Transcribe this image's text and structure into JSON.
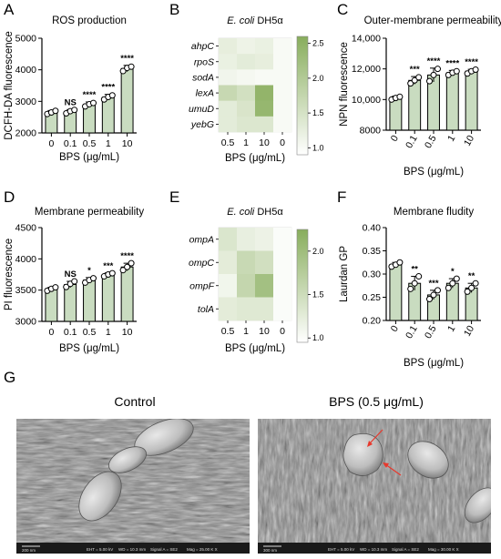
{
  "chart_data": [
    {
      "panel": "A",
      "type": "bar",
      "title": "ROS production",
      "xlabel": "BPS (μg/mL)",
      "ylabel": "DCFH-DA fluorescence",
      "ylim": [
        2000,
        5000
      ],
      "yticks": [
        2000,
        3000,
        4000,
        5000
      ],
      "categories": [
        "0",
        "0.1",
        "0.5",
        "1",
        "10"
      ],
      "values": [
        2650,
        2680,
        2900,
        3130,
        4040
      ],
      "errors": [
        60,
        60,
        80,
        90,
        100
      ],
      "points": [
        [
          2600,
          2650,
          2700
        ],
        [
          2620,
          2690,
          2730
        ],
        [
          2840,
          2910,
          2950
        ],
        [
          3060,
          3140,
          3190
        ],
        [
          3960,
          4060,
          4100
        ]
      ],
      "sig": [
        "",
        "NS",
        "****",
        "****",
        "****"
      ]
    },
    {
      "panel": "B",
      "type": "heatmap",
      "title": "E. coli DH5α",
      "xlabel": "BPS (μg/mL)",
      "columns": [
        "0.5",
        "1",
        "10",
        "0"
      ],
      "rows": [
        "ahpC",
        "rpoS",
        "sodA",
        "lexA",
        "umuD",
        "yebG"
      ],
      "values": [
        [
          1.25,
          1.15,
          1.2,
          1.0
        ],
        [
          1.2,
          1.3,
          1.25,
          1.0
        ],
        [
          1.1,
          1.05,
          1.0,
          1.0
        ],
        [
          1.7,
          1.55,
          2.45,
          1.0
        ],
        [
          1.3,
          1.45,
          2.4,
          1.0
        ],
        [
          1.3,
          1.4,
          1.4,
          1.0
        ]
      ],
      "scale_range": [
        0.9,
        2.6
      ],
      "scale_ticks": [
        1.0,
        1.5,
        2.0,
        2.5
      ]
    },
    {
      "panel": "C",
      "type": "bar",
      "title": "Outer-membrane permeability",
      "xlabel": "BPS (μg/mL)",
      "ylabel": "NPN fluorescence",
      "ylim": [
        8000,
        14000
      ],
      "yticks": [
        8000,
        10000,
        12000,
        14000
      ],
      "categories": [
        "0",
        "0.1",
        "0.5",
        "1",
        "10"
      ],
      "values": [
        10100,
        11250,
        11600,
        11750,
        11850
      ],
      "errors": [
        120,
        250,
        450,
        150,
        120
      ],
      "points": [
        [
          10000,
          10100,
          10180
        ],
        [
          11050,
          11250,
          11450
        ],
        [
          11200,
          11600,
          12000
        ],
        [
          11600,
          11750,
          11850
        ],
        [
          11700,
          11850,
          11950
        ]
      ],
      "sig": [
        "",
        "***",
        "****",
        "****",
        "****"
      ]
    },
    {
      "panel": "D",
      "type": "bar",
      "title": "Membrane permeability",
      "xlabel": "BPS (μg/mL)",
      "ylabel": "PI fluorescence",
      "ylim": [
        3000,
        4500
      ],
      "yticks": [
        3000,
        3500,
        4000,
        4500
      ],
      "categories": [
        "0",
        "0.1",
        "0.5",
        "1",
        "10"
      ],
      "values": [
        3520,
        3590,
        3660,
        3750,
        3870
      ],
      "errors": [
        25,
        50,
        40,
        25,
        60
      ],
      "points": [
        [
          3490,
          3520,
          3545
        ],
        [
          3550,
          3600,
          3640
        ],
        [
          3620,
          3660,
          3690
        ],
        [
          3720,
          3750,
          3770
        ],
        [
          3820,
          3870,
          3930
        ]
      ],
      "sig": [
        "",
        "NS",
        "*",
        "***",
        "****"
      ]
    },
    {
      "panel": "E",
      "type": "heatmap",
      "title": "E. coli DH5α",
      "xlabel": "BPS (μg/mL)",
      "columns": [
        "0.5",
        "1",
        "10",
        "0"
      ],
      "rows": [
        "ompA",
        "ompC",
        "ompF",
        "tolA"
      ],
      "values": [
        [
          1.35,
          1.2,
          1.15,
          1.0
        ],
        [
          1.25,
          1.55,
          1.45,
          1.0
        ],
        [
          1.1,
          1.6,
          1.95,
          1.0
        ],
        [
          1.25,
          1.3,
          1.3,
          1.0
        ]
      ],
      "scale_range": [
        0.95,
        2.25
      ],
      "scale_ticks": [
        1.0,
        1.5,
        2.0
      ]
    },
    {
      "panel": "F",
      "type": "bar",
      "title": "Membrane fludity",
      "xlabel": "BPS (μg/mL)",
      "ylabel": "Laurdan GP",
      "ylim": [
        0.2,
        0.4
      ],
      "yticks": [
        0.2,
        0.25,
        0.3,
        0.35,
        0.4
      ],
      "categories": [
        "0",
        "0.1",
        "0.5",
        "1",
        "10"
      ],
      "values": [
        0.32,
        0.28,
        0.255,
        0.28,
        0.27
      ],
      "errors": [
        0.005,
        0.015,
        0.01,
        0.01,
        0.01
      ],
      "points": [
        [
          0.316,
          0.32,
          0.325
        ],
        [
          0.268,
          0.28,
          0.295
        ],
        [
          0.246,
          0.255,
          0.265
        ],
        [
          0.27,
          0.28,
          0.29
        ],
        [
          0.262,
          0.27,
          0.28
        ]
      ],
      "sig": [
        "",
        "**",
        "***",
        "*",
        "**"
      ]
    }
  ],
  "panel_g": {
    "letter": "G",
    "left_title": "Control",
    "right_title": "BPS (0.5 μg/mL)",
    "left_scalebar": "200 nm",
    "right_scalebar": "300 nm",
    "left_info": [
      "EHT = 5.00 kV",
      "WD = 10.3 mm",
      "Signal A = SE2",
      "Mag = 25.00 K X"
    ],
    "right_info": [
      "EHT = 5.00 kV",
      "WD = 10.3 mm",
      "Signal A = SE2",
      "Mag = 30.00 K X"
    ]
  },
  "colors": {
    "bar": "#c9dcc0",
    "heat_low": "#ffffff",
    "heat_high": "#88ad5c"
  }
}
